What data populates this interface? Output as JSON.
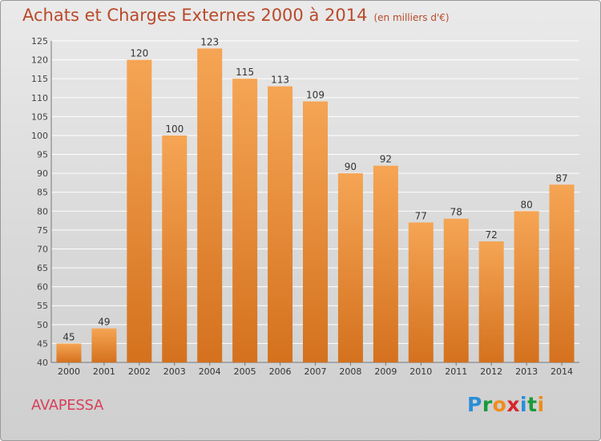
{
  "title": "Achats et Charges Externes 2000 à 2014",
  "unit": "(en milliers d'€)",
  "commune": "AVAPESSA",
  "logo": {
    "letters": [
      "P",
      "r",
      "o",
      "x",
      "i",
      "t",
      "i"
    ],
    "colors": [
      "#2a8ed8",
      "#1a9a3a",
      "#f08c1c",
      "#d8242c",
      "#2a8ed8",
      "#1a9a3a",
      "#f08c1c"
    ]
  },
  "colors": {
    "bar_top": "#f5a554",
    "bar_bottom": "#d4711e",
    "title": "#b84a2a",
    "commune": "#d7405a"
  },
  "chart_data": {
    "type": "bar",
    "title": "Achats et Charges Externes 2000 à 2014",
    "categories": [
      "2000",
      "2001",
      "2002",
      "2003",
      "2004",
      "2005",
      "2006",
      "2007",
      "2008",
      "2009",
      "2010",
      "2011",
      "2012",
      "2013",
      "2014"
    ],
    "values": [
      45,
      49,
      120,
      100,
      123,
      115,
      113,
      109,
      90,
      92,
      77,
      78,
      72,
      80,
      87
    ],
    "ylim": [
      40,
      125
    ],
    "yticks": [
      40,
      45,
      50,
      55,
      60,
      65,
      70,
      75,
      80,
      85,
      90,
      95,
      100,
      105,
      110,
      115,
      120,
      125
    ],
    "grid": true,
    "data_labels": true
  }
}
